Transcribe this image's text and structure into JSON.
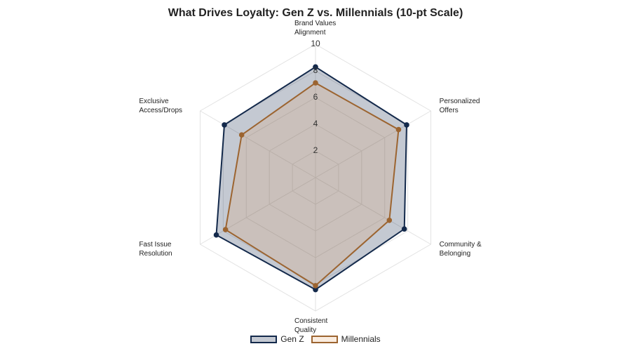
{
  "chart_data": {
    "type": "radar",
    "title": "What Drives Loyalty: Gen Z vs. Millennials (10-pt Scale)",
    "categories": [
      "Brand Values\nAlignment",
      "Personalized\nOffers",
      "Community &\nBelonging",
      "Consistent\nQuality",
      "Fast Issue\nResolution",
      "Exclusive\nAccess/Drops"
    ],
    "rlim": [
      0,
      10
    ],
    "rticks": [
      2,
      4,
      6,
      8,
      10
    ],
    "grid": true,
    "legend": "bottom",
    "series": [
      {
        "name": "Gen Z",
        "color": "#13294b",
        "fill": "#13294b",
        "values": [
          8.3,
          7.9,
          7.7,
          8.4,
          8.6,
          7.9
        ]
      },
      {
        "name": "Millennials",
        "color": "#9c6430",
        "fill": "#e8a060",
        "values": [
          7.1,
          7.2,
          6.4,
          8.1,
          7.8,
          6.4
        ]
      }
    ]
  }
}
